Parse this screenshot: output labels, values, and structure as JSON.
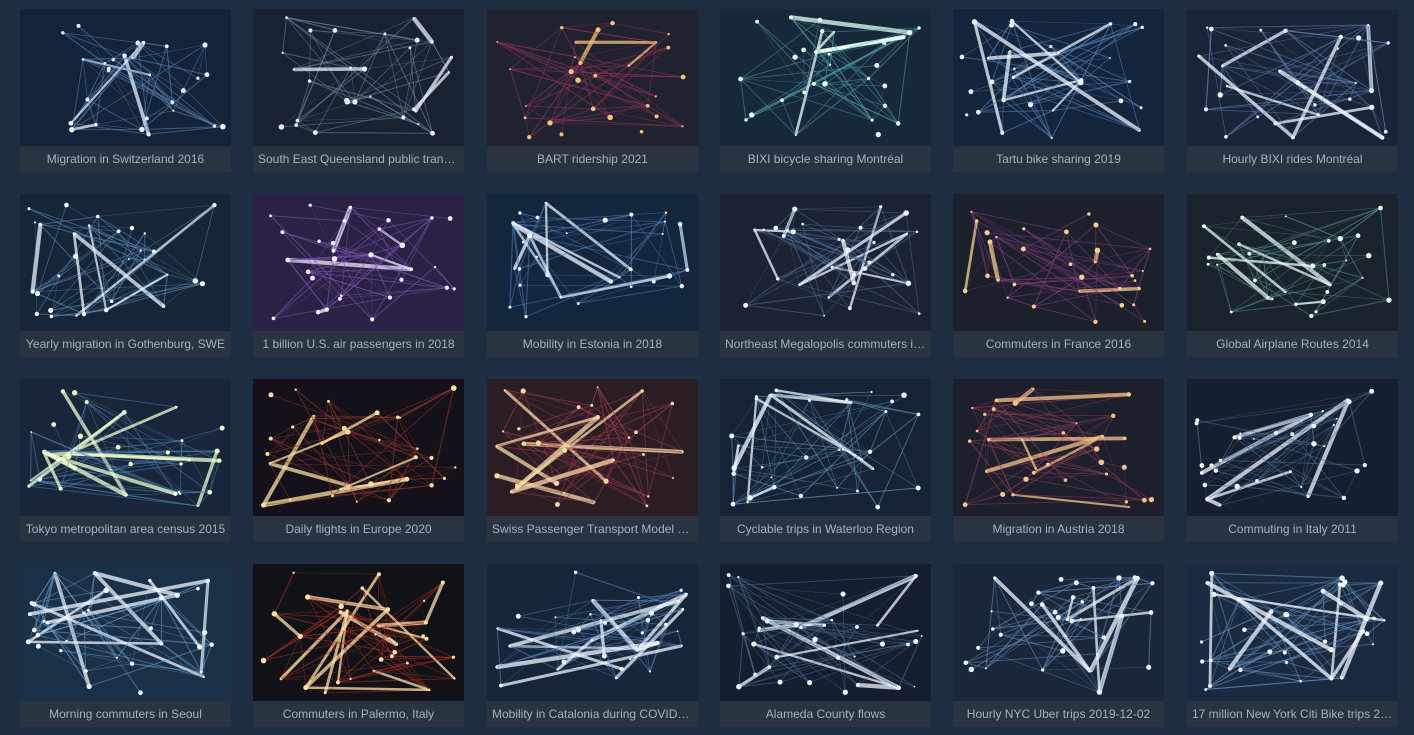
{
  "gallery": {
    "items": [
      {
        "title": "Migration in Switzerland 2016",
        "bg": "#14233a",
        "line": "#5b88b8",
        "node": "#e9f1ff"
      },
      {
        "title": "South East Queensland public transp...",
        "bg": "#182230",
        "line": "#6e86a6",
        "node": "#e9eef6"
      },
      {
        "title": "BART ridership 2021",
        "bg": "#20232f",
        "line": "#9b2f5a",
        "node": "#f2c27a"
      },
      {
        "title": "BIXI bicycle sharing Montréal",
        "bg": "#17283a",
        "line": "#4d9aa8",
        "node": "#e8fff8"
      },
      {
        "title": "Tartu bike sharing 2019",
        "bg": "#14243c",
        "line": "#5a8ac0",
        "node": "#eef4ff"
      },
      {
        "title": "Hourly BIXI rides Montréal",
        "bg": "#1a2438",
        "line": "#5f83b8",
        "node": "#eef3ff"
      },
      {
        "title": "Yearly migration in Gothenburg, SWE",
        "bg": "#162638",
        "line": "#5f92c2",
        "node": "#eef6ff"
      },
      {
        "title": "1 billion U.S. air passengers in 2018",
        "bg": "#2b2145",
        "line": "#7e57b6",
        "node": "#f2edff"
      },
      {
        "title": "Mobility in Estonia in 2018",
        "bg": "#14253e",
        "line": "#4f7fb4",
        "node": "#e9f2ff"
      },
      {
        "title": "Northeast Megalopolis commuters in...",
        "bg": "#1b2232",
        "line": "#4e6f9a",
        "node": "#eef3ff"
      },
      {
        "title": "Commuters in France 2016",
        "bg": "#1c1f2c",
        "line": "#8a3e82",
        "node": "#f6d08b"
      },
      {
        "title": "Global Airplane Routes 2014",
        "bg": "#1a222c",
        "line": "#4f8d8a",
        "node": "#eaf9ef"
      },
      {
        "title": "Tokyo metropolitan area census 2015",
        "bg": "#18253a",
        "line": "#4d86b6",
        "node": "#f0ffd0"
      },
      {
        "title": "Daily flights in Europe 2020",
        "bg": "#15111a",
        "line": "#9b3b2a",
        "node": "#f8df9f"
      },
      {
        "title": "Swiss Passenger Transport Model 2017",
        "bg": "#2b1d24",
        "line": "#a63b4a",
        "node": "#f7d9a8"
      },
      {
        "title": "Cyclable trips in Waterloo Region",
        "bg": "#162235",
        "line": "#5f94b8",
        "node": "#eef8ff"
      },
      {
        "title": "Migration in Austria 2018",
        "bg": "#1e1f2c",
        "line": "#9a3f5c",
        "node": "#f5c38a"
      },
      {
        "title": "Commuting in Italy 2011",
        "bg": "#151f2f",
        "line": "#4c6f98",
        "node": "#f2f6ff"
      },
      {
        "title": "Morning commuters in Seoul",
        "bg": "#1a3047",
        "line": "#6fa3cf",
        "node": "#eef6ff"
      },
      {
        "title": "Commuters in Palermo, Italy",
        "bg": "#111217",
        "line": "#b23022",
        "node": "#ffe0a8"
      },
      {
        "title": "Mobility in Catalonia during COVID-19",
        "bg": "#16253a",
        "line": "#5a84b6",
        "node": "#eff5ff"
      },
      {
        "title": "Alameda County flows",
        "bg": "#151e2e",
        "line": "#4d6f98",
        "node": "#eef4ff"
      },
      {
        "title": "Hourly NYC Uber trips 2019-12-02",
        "bg": "#1a2639",
        "line": "#6a96c8",
        "node": "#eef5ff"
      },
      {
        "title": "17 million New York Citi Bike trips 20...",
        "bg": "#1a2a40",
        "line": "#6894c2",
        "node": "#f1f6ff"
      }
    ]
  }
}
